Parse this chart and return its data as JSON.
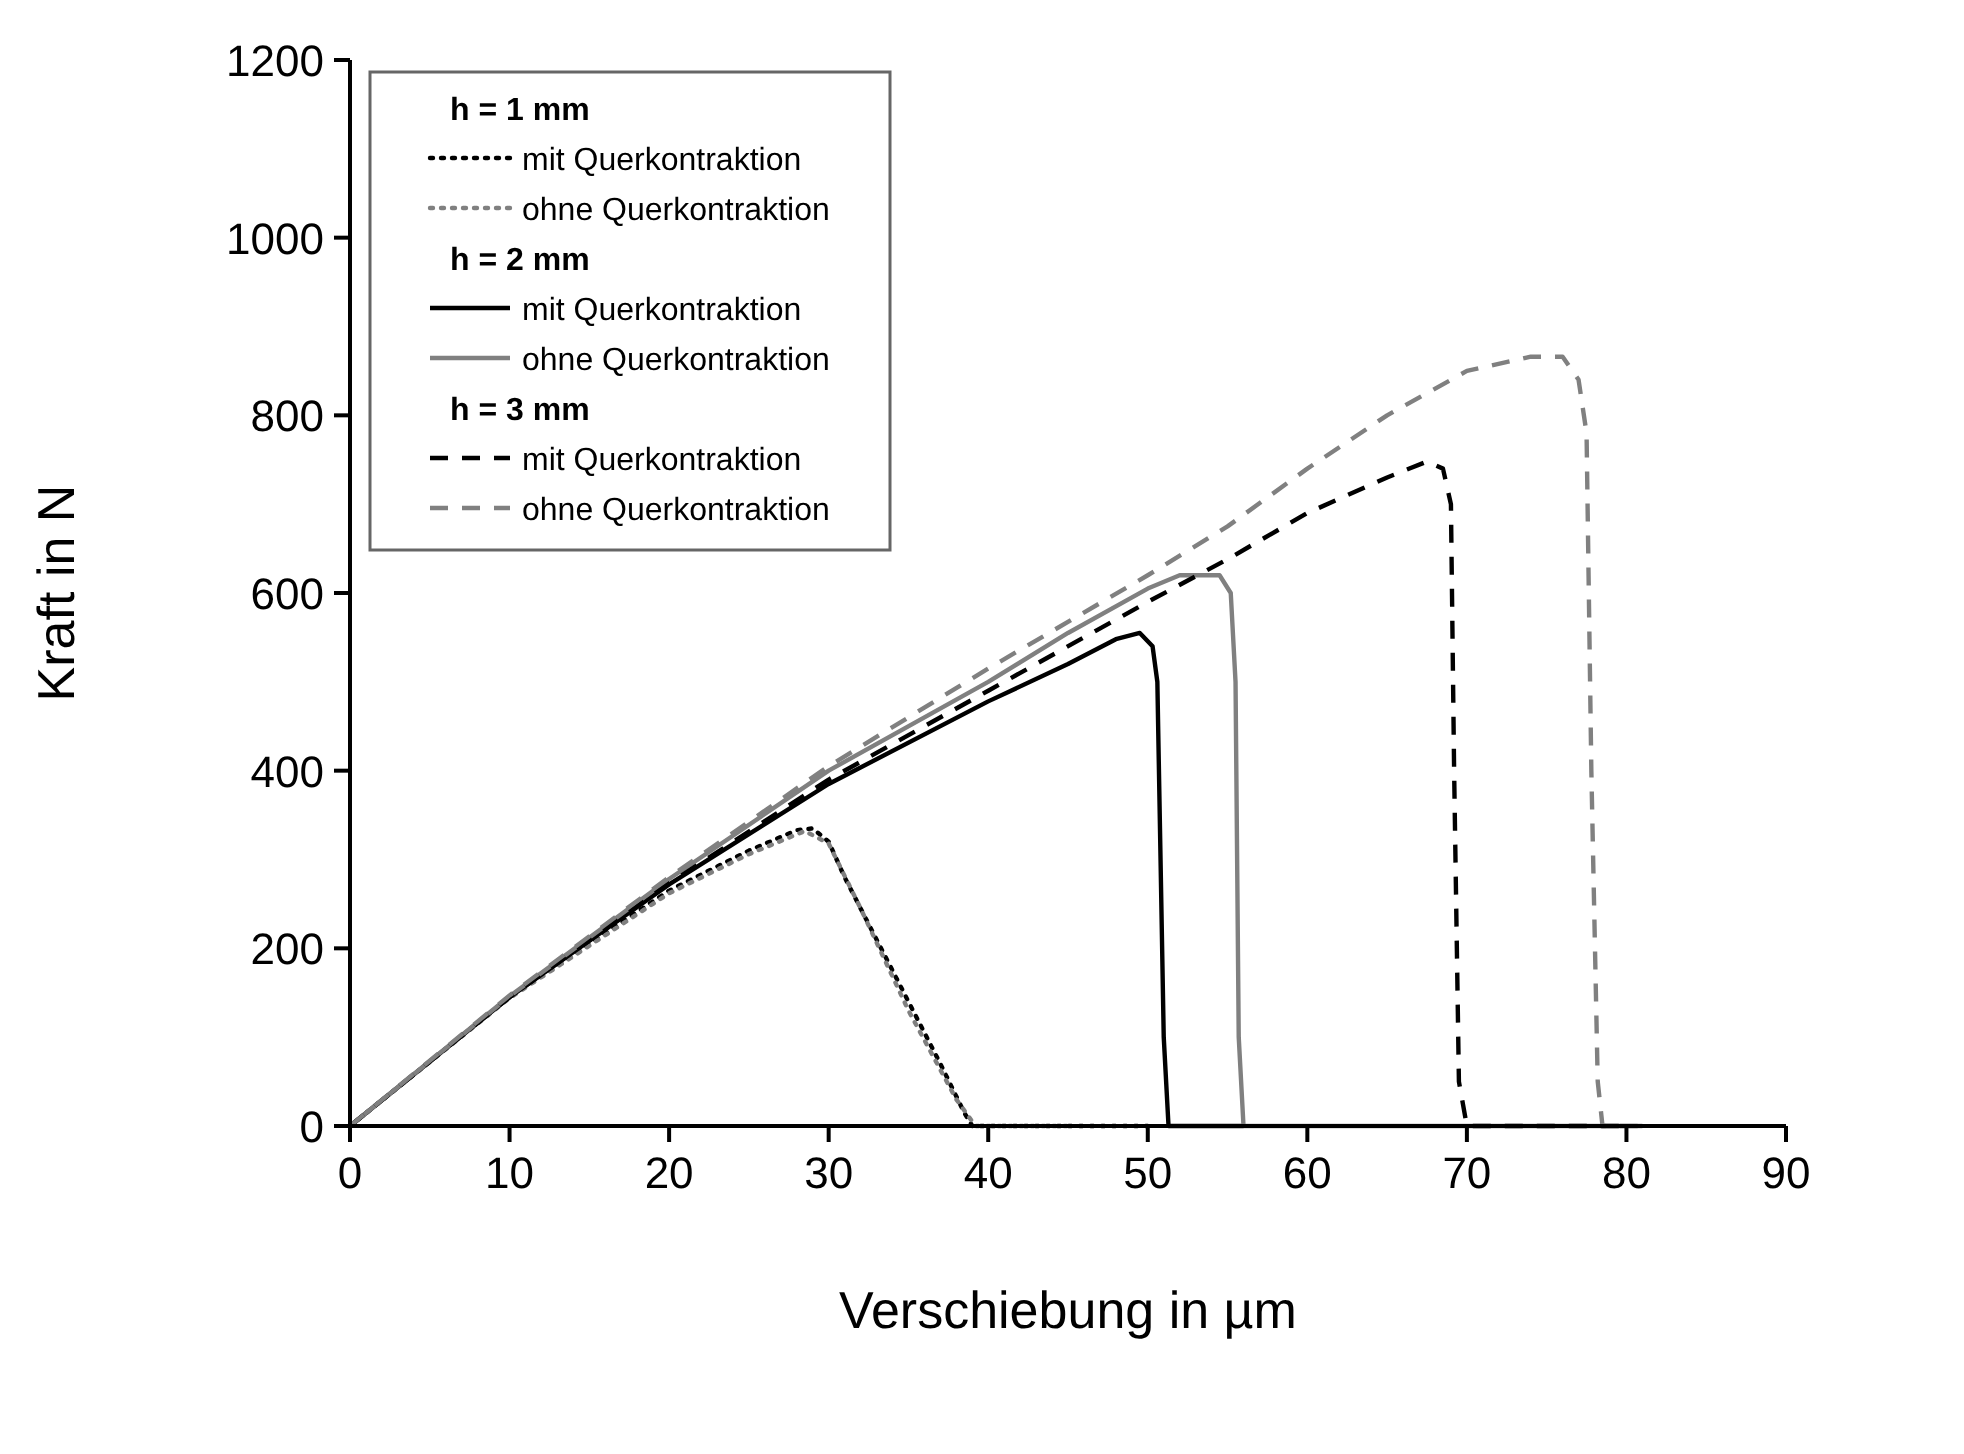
{
  "chart_data": {
    "type": "line",
    "xlabel": "Verschiebung in µm",
    "ylabel": "Kraft in N",
    "xlim": [
      0,
      90
    ],
    "xticks": [
      0,
      10,
      20,
      30,
      40,
      50,
      60,
      70,
      80,
      90
    ],
    "ylim": [
      0,
      1200
    ],
    "yticks": [
      0,
      200,
      400,
      600,
      800,
      1000,
      1200
    ],
    "grid": false,
    "legend": "top left",
    "annotations": [
      "h = 1 mm",
      "h = 2 mm",
      "h = 3 mm"
    ],
    "series": [
      {
        "name": "mit Querkontraktion",
        "color": "#000000",
        "line_style": "dotted",
        "x": [
          0,
          10,
          20,
          25,
          28,
          29,
          30,
          31,
          33,
          35,
          37,
          38.5,
          39,
          50
        ],
        "values": [
          0,
          145,
          265,
          310,
          333,
          335,
          320,
          280,
          210,
          140,
          70,
          15,
          0,
          0
        ]
      },
      {
        "name": "ohne Querkontraktion",
        "color": "#808080",
        "line_style": "dotted",
        "x": [
          0,
          10,
          20,
          25,
          28.5,
          30,
          32,
          35,
          38,
          39.2,
          45
        ],
        "values": [
          0,
          144,
          262,
          306,
          332,
          318,
          245,
          130,
          30,
          0,
          0
        ]
      },
      {
        "name": "mit Querkontraktion",
        "color": "#000000",
        "line_style": "solid",
        "x": [
          0,
          10,
          20,
          30,
          40,
          45,
          48,
          49.5,
          50.3,
          50.6,
          51,
          51.3,
          56
        ],
        "values": [
          0,
          145,
          272,
          385,
          478,
          520,
          548,
          555,
          540,
          500,
          100,
          0,
          0
        ]
      },
      {
        "name": "ohne Querkontraktion",
        "color": "#808080",
        "line_style": "solid",
        "x": [
          0,
          10,
          20,
          30,
          40,
          45,
          50,
          52,
          54.5,
          55.2,
          55.5,
          55.7,
          56,
          81
        ],
        "values": [
          0,
          146,
          278,
          400,
          500,
          555,
          605,
          620,
          620,
          600,
          500,
          100,
          0,
          0
        ]
      },
      {
        "name": "mit Querkontraktion",
        "color": "#000000",
        "line_style": "dashed",
        "x": [
          0,
          10,
          20,
          30,
          40,
          50,
          55,
          60,
          65,
          67.5,
          68.5,
          69,
          69.2,
          69.5,
          70,
          80
        ],
        "values": [
          0,
          145,
          273,
          390,
          490,
          590,
          638,
          690,
          730,
          748,
          740,
          700,
          400,
          50,
          0,
          0
        ]
      },
      {
        "name": "ohne Querkontraktion",
        "color": "#808080",
        "line_style": "dashed",
        "x": [
          0,
          10,
          20,
          30,
          40,
          50,
          55,
          60,
          65,
          70,
          74,
          76,
          77,
          77.5,
          77.8,
          78.2,
          78.5,
          81
        ],
        "values": [
          0,
          147,
          280,
          405,
          515,
          620,
          675,
          740,
          800,
          850,
          866,
          866,
          840,
          780,
          400,
          50,
          0,
          0
        ]
      }
    ]
  }
}
